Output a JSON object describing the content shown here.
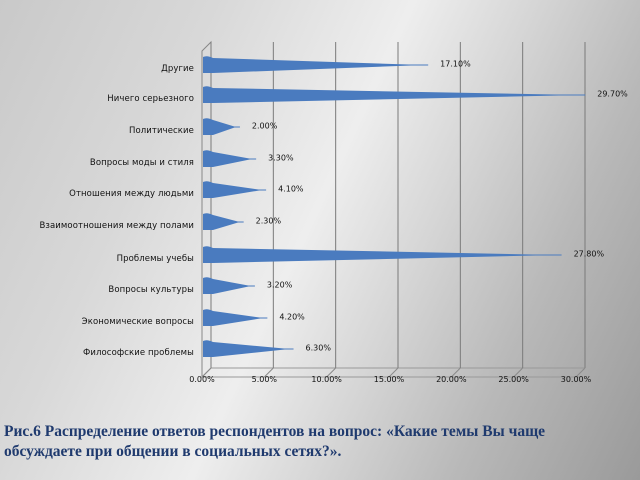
{
  "chart_data": {
    "type": "bar",
    "orientation": "horizontal",
    "style": "3d-cone",
    "categories": [
      "Другие",
      "Ничего серьезного",
      "Политические",
      "Вопросы моды и стиля",
      "Отношения между людьми",
      "Взаимоотношения между полами",
      "Проблемы учебы",
      "Вопросы культуры",
      "Экономические вопросы",
      "Философские проблемы"
    ],
    "values": [
      17.1,
      29.7,
      2.0,
      3.3,
      4.1,
      2.3,
      27.8,
      3.2,
      4.2,
      6.3
    ],
    "value_labels": [
      "17.10%",
      "29.70%",
      "2.00%",
      "3.30%",
      "4.10%",
      "2.30%",
      "27.80%",
      "3.20%",
      "4.20%",
      "6.30%"
    ],
    "x_ticks": [
      "0.00%",
      "5.00%",
      "10.00%",
      "15.00%",
      "20.00%",
      "25.00%",
      "30.00%"
    ],
    "xlim": [
      0,
      30
    ],
    "xlabel": "",
    "ylabel": "",
    "grid": true,
    "legend": "none",
    "series_color": "#4a7bbf",
    "title": "Рис.6 Распределение ответов респондентов на вопрос: «Какие темы Вы чаще обсуждаете при общении в социальных сетях?»."
  },
  "caption": {
    "line1": "Рис.6 Распределение ответов респондентов на вопрос: «Какие темы Вы чаще",
    "line2": "обсуждаете при общении в социальных сетях?»."
  }
}
